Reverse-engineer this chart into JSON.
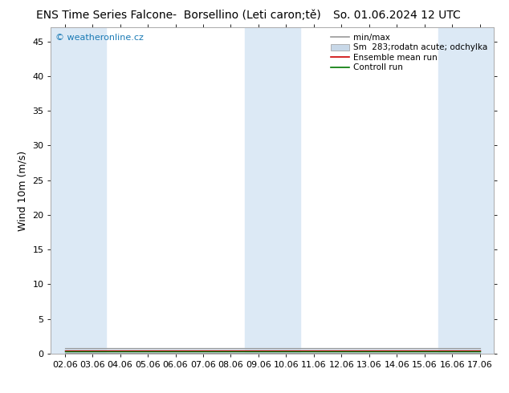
{
  "title_left": "ENS Time Series Falcone-  Borsellino (Leti caron;tě)",
  "title_right": "So. 01.06.2024 12 UTC",
  "ylabel": "Wind 10m (m/s)",
  "ylim": [
    0,
    47
  ],
  "yticks": [
    0,
    5,
    10,
    15,
    20,
    25,
    30,
    35,
    40,
    45
  ],
  "xtick_labels": [
    "02.06",
    "03.06",
    "04.06",
    "05.06",
    "06.06",
    "07.06",
    "08.06",
    "09.06",
    "10.06",
    "11.06",
    "12.06",
    "13.06",
    "14.06",
    "15.06",
    "16.06",
    "17.06"
  ],
  "bg_color": "#ffffff",
  "plot_bg_color": "#ffffff",
  "blue_band_indices": [
    0,
    1,
    7,
    8,
    14,
    15
  ],
  "band_color": "#dce9f5",
  "watermark": "© weatheronline.cz",
  "watermark_color": "#1a7ab5",
  "legend_minmax_color": "#999999",
  "legend_spread_color": "#c8d8e8",
  "legend_mean_color": "#cc0000",
  "legend_control_color": "#007700",
  "title_fontsize": 10,
  "axis_fontsize": 9,
  "tick_fontsize": 8,
  "mean_values": [
    0.5,
    0.5,
    0.5,
    0.5,
    0.5,
    0.5,
    0.5,
    0.5,
    0.5,
    0.5,
    0.5,
    0.5,
    0.5,
    0.5,
    0.5,
    0.5
  ],
  "control_values": [
    0.3,
    0.3,
    0.3,
    0.3,
    0.3,
    0.3,
    0.3,
    0.3,
    0.3,
    0.3,
    0.3,
    0.3,
    0.3,
    0.3,
    0.3,
    0.3
  ],
  "minmax_min": [
    0.1,
    0.1,
    0.1,
    0.1,
    0.1,
    0.1,
    0.1,
    0.1,
    0.1,
    0.1,
    0.1,
    0.1,
    0.1,
    0.1,
    0.1,
    0.1
  ],
  "minmax_max": [
    0.8,
    0.8,
    0.8,
    0.8,
    0.8,
    0.8,
    0.8,
    0.8,
    0.8,
    0.8,
    0.8,
    0.8,
    0.8,
    0.8,
    0.8,
    0.8
  ],
  "legend_minmax_label": "min/max",
  "legend_spread_label": "Sm  283;rodatn acute; odchylka",
  "legend_mean_label": "Ensemble mean run",
  "legend_control_label": "Controll run"
}
